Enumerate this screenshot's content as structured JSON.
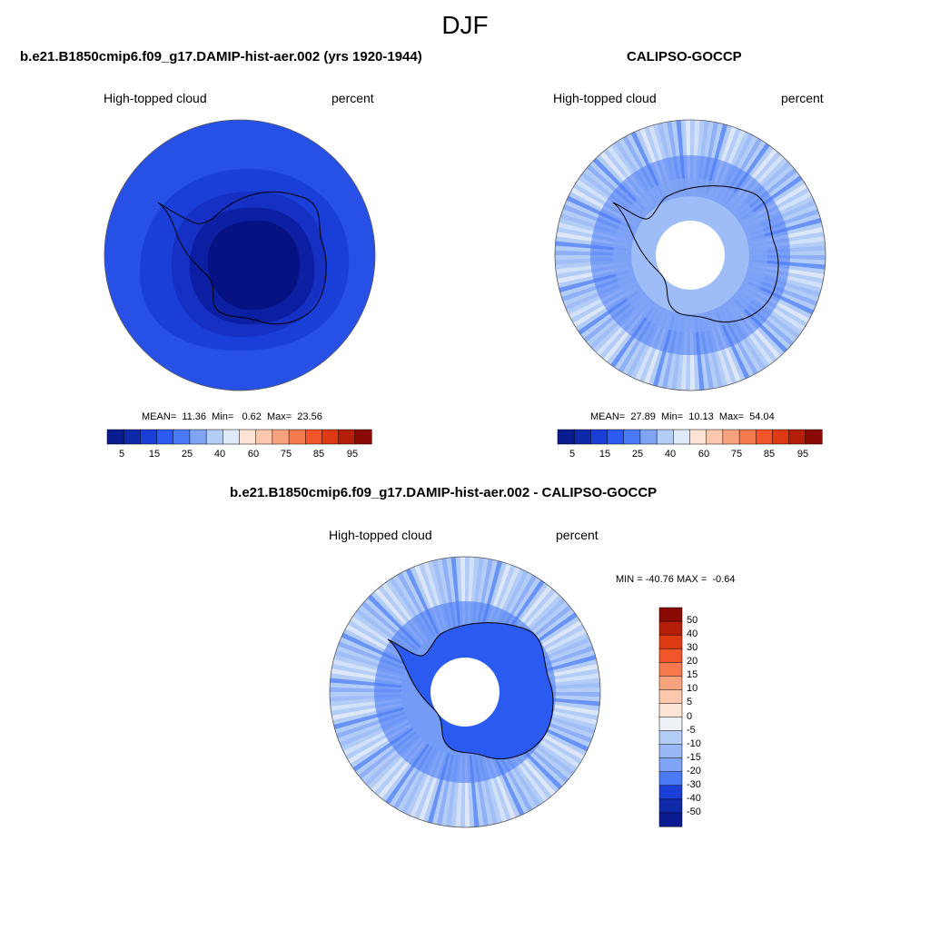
{
  "title": "DJF",
  "panels": [
    {
      "title": "b.e21.B1850cmip6.f09_g17.DAMIP-hist-aer.002 (yrs 1920-1944)",
      "left_label": "High-topped cloud",
      "right_label": "percent",
      "stats": "MEAN=  11.36  Min=   0.62  Max=  23.56"
    },
    {
      "title": "CALIPSO-GOCCP",
      "left_label": "High-topped cloud",
      "right_label": "percent",
      "stats": "MEAN=  27.89  Min=  10.13  Max=  54.04"
    },
    {
      "title": "b.e21.B1850cmip6.f09_g17.DAMIP-hist-aer.002 - CALIPSO-GOCCP",
      "left_label": "High-topped cloud",
      "right_label": "percent",
      "stats": "MIN = -40.76 MAX =  -0.64"
    }
  ],
  "colorbar_horizontal": {
    "colors": [
      "#0a1a8f",
      "#0f2aa8",
      "#1a3fd6",
      "#2a5af0",
      "#4a7af5",
      "#7fa3f5",
      "#b4cdf7",
      "#dfe9f8",
      "#fde4d4",
      "#fcc8ad",
      "#f9a37e",
      "#f67a4e",
      "#f2552a",
      "#dd3a14",
      "#b51f0a",
      "#8b0a05"
    ],
    "tick_labels": [
      "5",
      "15",
      "25",
      "40",
      "60",
      "75",
      "85",
      "95"
    ]
  },
  "colorbar_vertical": {
    "colors": [
      "#8b0a05",
      "#b51f0a",
      "#dd3a14",
      "#f2552a",
      "#f67a4e",
      "#f9a37e",
      "#fcc8ad",
      "#fde4d4",
      "#eef2f8",
      "#b4cdf7",
      "#9ab8f5",
      "#7fa3f5",
      "#4a7af5",
      "#1a3fd6",
      "#0f2aa8",
      "#0a1a8f"
    ],
    "tick_labels": [
      "50",
      "40",
      "30",
      "20",
      "15",
      "10",
      "5",
      "0",
      "-5",
      "-10",
      "-15",
      "-20",
      "-30",
      "-40",
      "-50"
    ]
  }
}
